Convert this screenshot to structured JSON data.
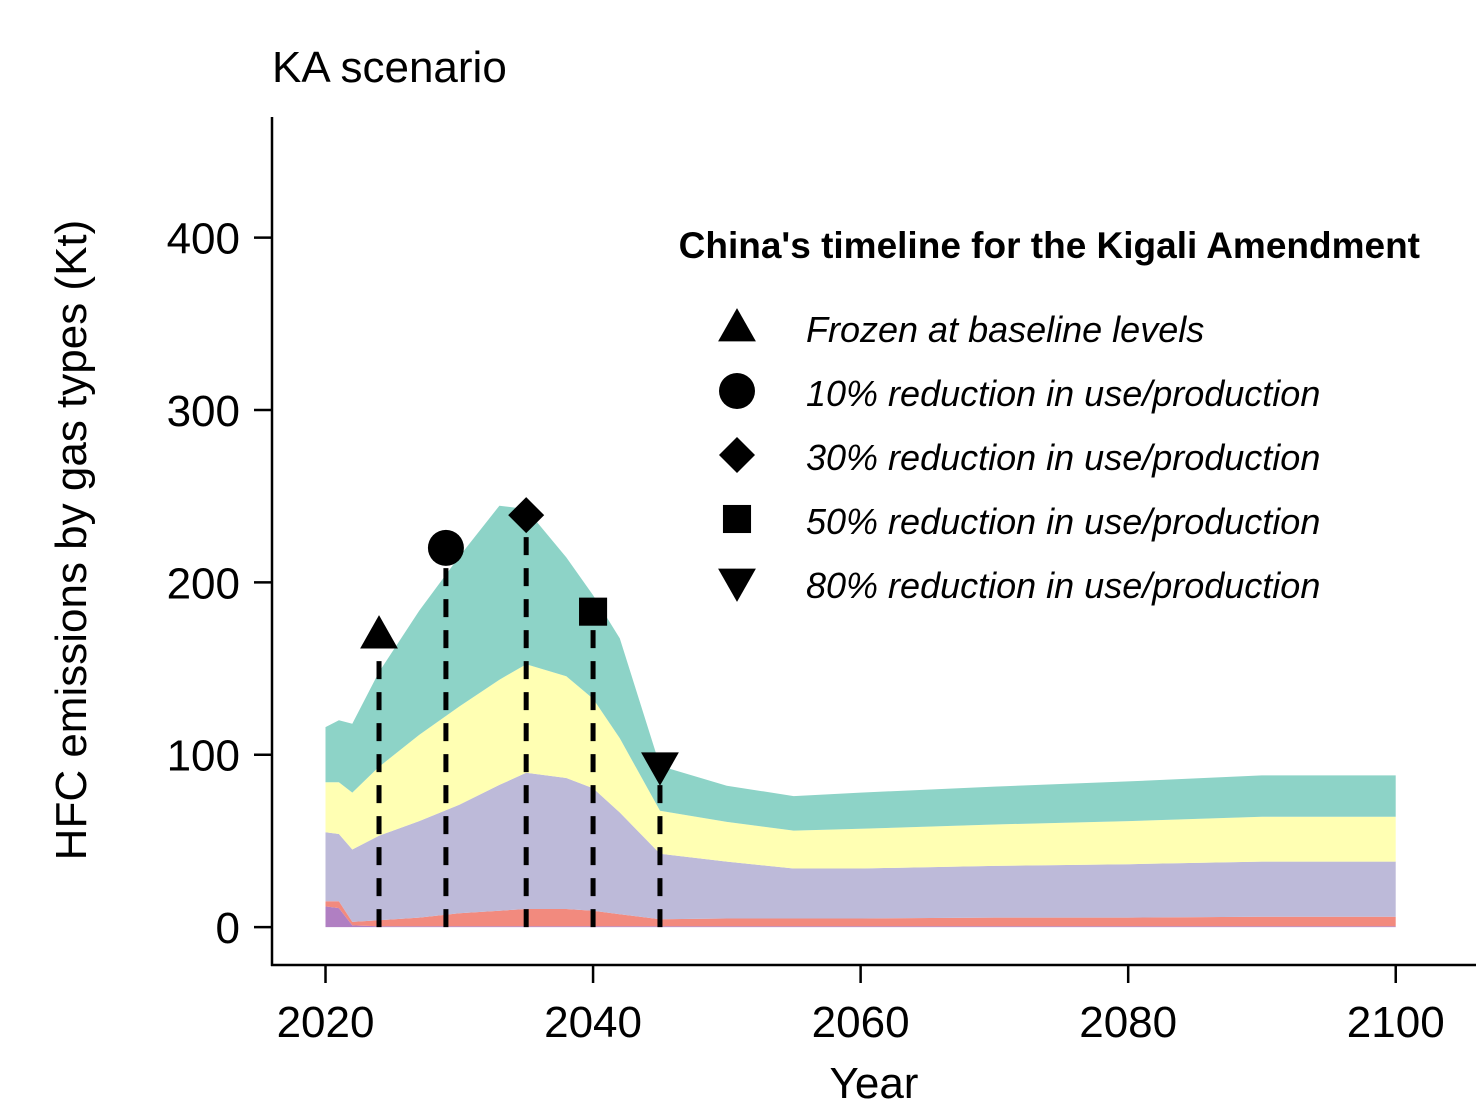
{
  "chart_data": {
    "type": "area",
    "title": "KA scenario",
    "xlabel": "Year",
    "ylabel": "HFC emissions by gas types (Kt)",
    "xlim": [
      2016,
      2106
    ],
    "ylim": [
      -22,
      470
    ],
    "x_ticks": [
      2020,
      2040,
      2060,
      2080,
      2100
    ],
    "y_ticks": [
      0,
      100,
      200,
      300,
      400
    ],
    "stacked": true,
    "x": [
      2020,
      2021,
      2022,
      2024,
      2027,
      2030,
      2033,
      2035,
      2038,
      2040,
      2042,
      2045,
      2050,
      2055,
      2060,
      2070,
      2080,
      2090,
      2100
    ],
    "series": [
      {
        "color": "#b07fc2",
        "values": [
          12,
          11,
          1,
          0.5,
          0.5,
          0.5,
          0.5,
          0.5,
          0.5,
          0.5,
          0.5,
          0.5,
          0.5,
          0.5,
          0.5,
          0.5,
          0.5,
          0.5,
          0.5
        ]
      },
      {
        "color": "#f28a7e",
        "values": [
          3,
          4,
          2,
          3.5,
          5,
          7.5,
          9,
          10,
          10,
          9,
          7,
          4,
          4.5,
          4.5,
          4.5,
          5,
          5,
          5.5,
          5.5
        ]
      },
      {
        "color": "#bdbad9",
        "values": [
          40,
          39,
          42,
          49,
          56,
          63,
          73,
          79,
          76,
          71,
          59,
          38,
          33,
          29,
          29,
          30,
          31,
          32,
          32
        ]
      },
      {
        "color": "#ffffb3",
        "values": [
          29,
          30,
          33,
          40,
          50,
          57,
          61,
          63,
          59,
          52,
          43,
          25,
          23,
          22,
          23,
          24,
          25,
          26,
          26
        ]
      },
      {
        "color": "#8dd3c7",
        "values": [
          32,
          36,
          40,
          55,
          72,
          87,
          101,
          90,
          69,
          60,
          58,
          26,
          21,
          20,
          21,
          22,
          23,
          24,
          24
        ]
      }
    ],
    "timeline": {
      "title": "China's timeline for the Kigali Amendment",
      "events": [
        {
          "label": "Frozen at baseline levels",
          "year": 2024,
          "value": 170,
          "marker": "triangle-up"
        },
        {
          "label": "10% reduction in use/production",
          "year": 2029,
          "value": 220,
          "marker": "circle"
        },
        {
          "label": "30% reduction in use/production",
          "year": 2035,
          "value": 239,
          "marker": "diamond"
        },
        {
          "label": "50% reduction in use/production",
          "year": 2040,
          "value": 183,
          "marker": "square"
        },
        {
          "label": "80% reduction in use/production",
          "year": 2045,
          "value": 93,
          "marker": "triangle-down"
        }
      ]
    },
    "legend_placement": "top-right",
    "grid": false
  }
}
